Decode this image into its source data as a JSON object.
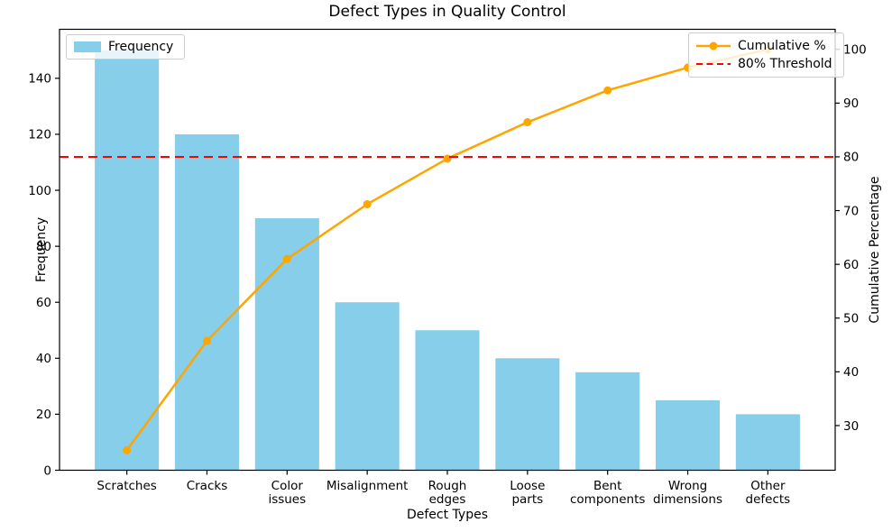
{
  "chart_data": {
    "type": "bar",
    "subtype": "pareto",
    "title": "Defect Types in Quality Control",
    "xlabel": "Defect Types",
    "categories": [
      "Scratches",
      "Cracks",
      "Color issues",
      "Misalignment",
      "Rough edges",
      "Loose parts",
      "Bent components",
      "Wrong dimensions",
      "Other defects"
    ],
    "category_label_lines": [
      [
        "Scratches"
      ],
      [
        "Cracks"
      ],
      [
        "Color",
        "issues"
      ],
      [
        "Misalignment"
      ],
      [
        "Rough",
        "edges"
      ],
      [
        "Loose",
        "parts"
      ],
      [
        "Bent",
        "components"
      ],
      [
        "Wrong",
        "dimensions"
      ],
      [
        "Other",
        "defects"
      ]
    ],
    "series": [
      {
        "name": "Frequency",
        "type": "bar",
        "axis": "left",
        "color": "#87CEEB",
        "values": [
          150,
          120,
          90,
          60,
          50,
          40,
          35,
          25,
          20
        ]
      },
      {
        "name": "Cumulative %",
        "type": "line",
        "axis": "right",
        "color": "#FFA500",
        "marker": "circle",
        "values": [
          25.42,
          45.76,
          61.02,
          71.19,
          79.66,
          86.44,
          92.37,
          96.61,
          100.0
        ]
      },
      {
        "name": "80% Threshold",
        "type": "hline",
        "axis": "right",
        "color": "#FF0000",
        "linestyle": "dashed",
        "value": 80
      }
    ],
    "left_axis": {
      "label": "Frequency",
      "ticks": [
        0,
        20,
        40,
        60,
        80,
        100,
        120,
        140
      ],
      "lim": [
        0,
        157.5
      ]
    },
    "right_axis": {
      "label": "Cumulative Percentage",
      "ticks": [
        30,
        40,
        50,
        60,
        70,
        80,
        90,
        100
      ],
      "lim": [
        21.69,
        103.73
      ]
    },
    "legend_left_position": "upper left",
    "legend_right_position": "upper right",
    "grid": false
  }
}
